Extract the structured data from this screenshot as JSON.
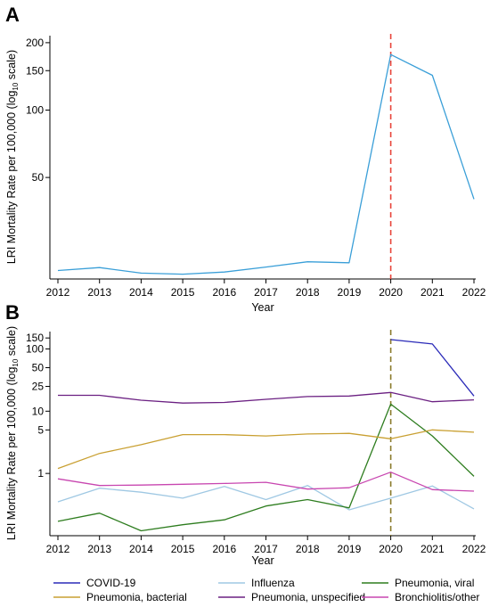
{
  "chart_data": [
    {
      "type": "line",
      "panel_label": "A",
      "x": [
        2012,
        2013,
        2014,
        2015,
        2016,
        2017,
        2018,
        2019,
        2020,
        2021,
        2022
      ],
      "series": [
        {
          "name": "COVID-19",
          "color": "#3a9fd8",
          "values": [
            19.2,
            19.8,
            18.7,
            18.5,
            18.9,
            19.9,
            21.0,
            20.8,
            177,
            143,
            40
          ]
        }
      ],
      "xlabel": "Year",
      "ylabel": {
        "main": "LRI Mortality Rate per 100,000 (log",
        "sub": "10",
        "suffix": " scale)"
      },
      "yscale": "log",
      "ylim": [
        17.6,
        215
      ],
      "yticks": [
        50,
        100,
        150,
        200
      ],
      "xticks": [
        2012,
        2013,
        2014,
        2015,
        2016,
        2017,
        2018,
        2019,
        2020,
        2021,
        2022
      ],
      "vline": {
        "x": 2020,
        "color": "#e8443a",
        "style": "dashed"
      },
      "grid": false
    },
    {
      "type": "line",
      "panel_label": "B",
      "x": [
        2012,
        2013,
        2014,
        2015,
        2016,
        2017,
        2018,
        2019,
        2020,
        2021,
        2022
      ],
      "series": [
        {
          "name": "COVID-19",
          "color": "#2b2bb8",
          "values": [
            null,
            null,
            null,
            null,
            null,
            null,
            null,
            null,
            141,
            120,
            17.5
          ]
        },
        {
          "name": "Influenza",
          "color": "#9fc8e3",
          "values": [
            0.35,
            0.58,
            0.5,
            0.4,
            0.62,
            0.38,
            0.64,
            0.26,
            0.4,
            0.63,
            0.27
          ]
        },
        {
          "name": "Pneumonia, viral",
          "color": "#2e7d1f",
          "values": [
            0.17,
            0.23,
            0.12,
            0.15,
            0.18,
            0.3,
            0.38,
            0.28,
            13,
            4.0,
            0.9
          ]
        },
        {
          "name": "Pneumonia, bacterial",
          "color": "#c9a032",
          "values": [
            1.2,
            2.1,
            2.9,
            4.2,
            4.2,
            4.0,
            4.3,
            4.4,
            3.6,
            5.0,
            4.6
          ]
        },
        {
          "name": "Pneumonia, unspecified",
          "color": "#6b2082",
          "values": [
            18,
            18,
            15,
            13.5,
            13.8,
            15.5,
            17.2,
            17.5,
            20,
            14.2,
            15.2
          ]
        },
        {
          "name": "Bronchiolitis/other",
          "color": "#c846b0",
          "values": [
            0.82,
            0.64,
            0.65,
            0.67,
            0.69,
            0.72,
            0.56,
            0.59,
            1.05,
            0.55,
            0.52
          ]
        }
      ],
      "xlabel": "Year",
      "ylabel": {
        "main": "LRI Mortality Rate per 100,000 (log",
        "sub": "10",
        "suffix": " scale)"
      },
      "yscale": "log",
      "ylim": [
        0.1,
        190
      ],
      "yticks": [
        1,
        5,
        10,
        25,
        50,
        100,
        150
      ],
      "xticks": [
        2012,
        2013,
        2014,
        2015,
        2016,
        2017,
        2018,
        2019,
        2020,
        2021,
        2022
      ],
      "vline": {
        "x": 2020,
        "color": "#8a7a2a",
        "style": "dashed"
      },
      "grid": false
    }
  ],
  "legend": {
    "placement": "bottom",
    "items": [
      {
        "name": "COVID-19",
        "color": "#2b2bb8"
      },
      {
        "name": "Influenza",
        "color": "#9fc8e3"
      },
      {
        "name": "Pneumonia, viral",
        "color": "#2e7d1f"
      },
      {
        "name": "Pneumonia, bacterial",
        "color": "#c9a032"
      },
      {
        "name": "Pneumonia, unspecified",
        "color": "#6b2082"
      },
      {
        "name": "Bronchiolitis/other",
        "color": "#c846b0"
      }
    ]
  }
}
